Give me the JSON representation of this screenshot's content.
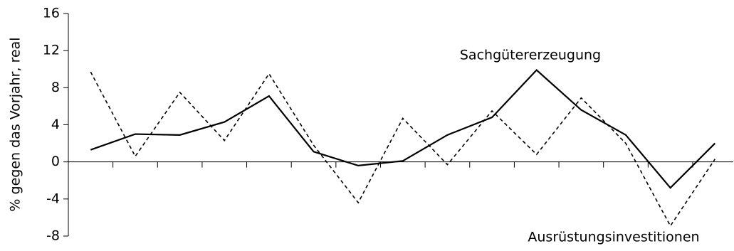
{
  "chart_data": {
    "type": "line",
    "ylabel": "% gegen das Vorjahr, real",
    "categories": [
      null,
      null,
      null,
      null,
      null,
      null,
      null,
      null,
      null,
      null,
      null,
      null,
      null,
      null,
      null
    ],
    "series": [
      {
        "name": "Sachgütererzeugung",
        "color": "#000000",
        "dash": "solid",
        "values": [
          1.3,
          3.0,
          2.9,
          4.3,
          7.1,
          1.1,
          -0.4,
          0.1,
          2.9,
          4.8,
          9.9,
          5.6,
          2.9,
          -2.8,
          2.0
        ]
      },
      {
        "name": "Ausrüstungsinvestitionen",
        "color": "#000000",
        "dash": "dashed",
        "values": [
          9.7,
          0.6,
          7.5,
          2.3,
          9.5,
          1.8,
          -4.4,
          4.7,
          -0.3,
          5.5,
          0.8,
          6.9,
          2.0,
          -6.9,
          0.3
        ]
      }
    ],
    "ylim": [
      -8,
      16
    ],
    "yticks": [
      -8,
      -4,
      0,
      4,
      8,
      12,
      16
    ],
    "grid": false
  }
}
